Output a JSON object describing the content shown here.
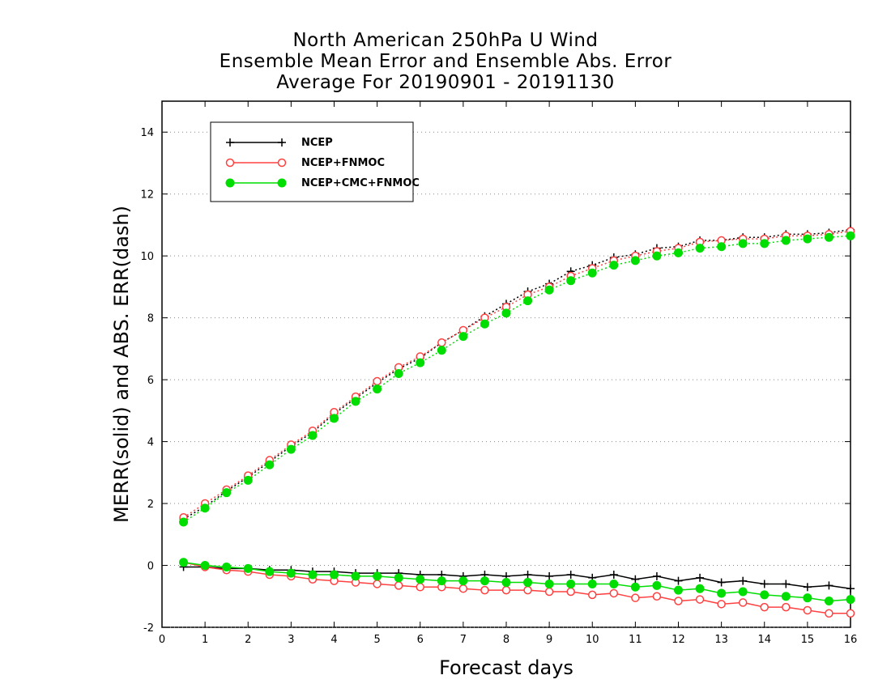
{
  "chart_data": {
    "type": "line",
    "title": [
      "North American 250hPa U Wind",
      "Ensemble Mean Error and Ensemble Abs. Error",
      "Average For 20190901 - 20191130"
    ],
    "xlabel": "Forecast days",
    "ylabel": "MERR(solid) and ABS. ERR(dash)",
    "xlim": [
      0,
      16
    ],
    "ylim": [
      -2,
      15
    ],
    "xticks": [
      0,
      1,
      2,
      3,
      4,
      5,
      6,
      7,
      8,
      9,
      10,
      11,
      12,
      13,
      14,
      15,
      16
    ],
    "yticks": [
      -2,
      0,
      2,
      4,
      6,
      8,
      10,
      12,
      14
    ],
    "grid": "horizontal dotted",
    "legend_position": "top-left",
    "x": [
      0.5,
      1,
      1.5,
      2,
      2.5,
      3,
      3.5,
      4,
      4.5,
      5,
      5.5,
      6,
      6.5,
      7,
      7.5,
      8,
      8.5,
      9,
      9.5,
      10,
      10.5,
      11,
      11.5,
      12,
      12.5,
      13,
      13.5,
      14,
      14.5,
      15,
      15.5,
      16
    ],
    "series": [
      {
        "name": "NCEP",
        "color": "#000000",
        "marker": "plus",
        "abs_err_dash": [
          1.5,
          1.9,
          2.4,
          2.85,
          3.35,
          3.85,
          4.3,
          4.9,
          5.4,
          5.9,
          6.35,
          6.7,
          7.2,
          7.6,
          8.05,
          8.45,
          8.85,
          9.1,
          9.5,
          9.7,
          9.95,
          10.05,
          10.25,
          10.3,
          10.5,
          10.5,
          10.6,
          10.6,
          10.7,
          10.7,
          10.75,
          10.85
        ],
        "mean_err_solid": [
          -0.05,
          -0.05,
          -0.1,
          -0.1,
          -0.15,
          -0.15,
          -0.2,
          -0.2,
          -0.25,
          -0.25,
          -0.25,
          -0.3,
          -0.3,
          -0.35,
          -0.3,
          -0.35,
          -0.3,
          -0.35,
          -0.3,
          -0.4,
          -0.3,
          -0.45,
          -0.35,
          -0.5,
          -0.4,
          -0.55,
          -0.5,
          -0.6,
          -0.6,
          -0.7,
          -0.65,
          -0.75
        ]
      },
      {
        "name": "NCEP+FNMOC",
        "color": "#ff4040",
        "marker": "open-circle",
        "abs_err_dash": [
          1.55,
          2.0,
          2.45,
          2.9,
          3.4,
          3.9,
          4.35,
          4.95,
          5.45,
          5.95,
          6.4,
          6.75,
          7.2,
          7.6,
          8.0,
          8.35,
          8.75,
          9.0,
          9.35,
          9.6,
          9.85,
          10.0,
          10.15,
          10.25,
          10.45,
          10.5,
          10.55,
          10.55,
          10.65,
          10.65,
          10.7,
          10.8
        ],
        "mean_err_solid": [
          0.1,
          -0.05,
          -0.15,
          -0.2,
          -0.3,
          -0.35,
          -0.45,
          -0.5,
          -0.55,
          -0.6,
          -0.65,
          -0.7,
          -0.7,
          -0.75,
          -0.8,
          -0.8,
          -0.8,
          -0.85,
          -0.85,
          -0.95,
          -0.9,
          -1.05,
          -1.0,
          -1.15,
          -1.1,
          -1.25,
          -1.2,
          -1.35,
          -1.35,
          -1.45,
          -1.55,
          -1.55
        ]
      },
      {
        "name": "NCEP+CMC+FNMOC",
        "color": "#00dd00",
        "marker": "filled-circle",
        "abs_err_dash": [
          1.4,
          1.85,
          2.35,
          2.75,
          3.25,
          3.75,
          4.2,
          4.75,
          5.3,
          5.7,
          6.2,
          6.55,
          6.95,
          7.4,
          7.8,
          8.15,
          8.55,
          8.9,
          9.2,
          9.45,
          9.7,
          9.85,
          10.0,
          10.1,
          10.25,
          10.3,
          10.4,
          10.4,
          10.5,
          10.55,
          10.6,
          10.65
        ],
        "mean_err_solid": [
          0.1,
          0.0,
          -0.05,
          -0.1,
          -0.2,
          -0.25,
          -0.3,
          -0.3,
          -0.35,
          -0.35,
          -0.4,
          -0.45,
          -0.5,
          -0.5,
          -0.5,
          -0.55,
          -0.55,
          -0.6,
          -0.6,
          -0.6,
          -0.6,
          -0.7,
          -0.65,
          -0.8,
          -0.75,
          -0.9,
          -0.85,
          -0.95,
          -1.0,
          -1.05,
          -1.15,
          -1.1
        ]
      }
    ]
  }
}
